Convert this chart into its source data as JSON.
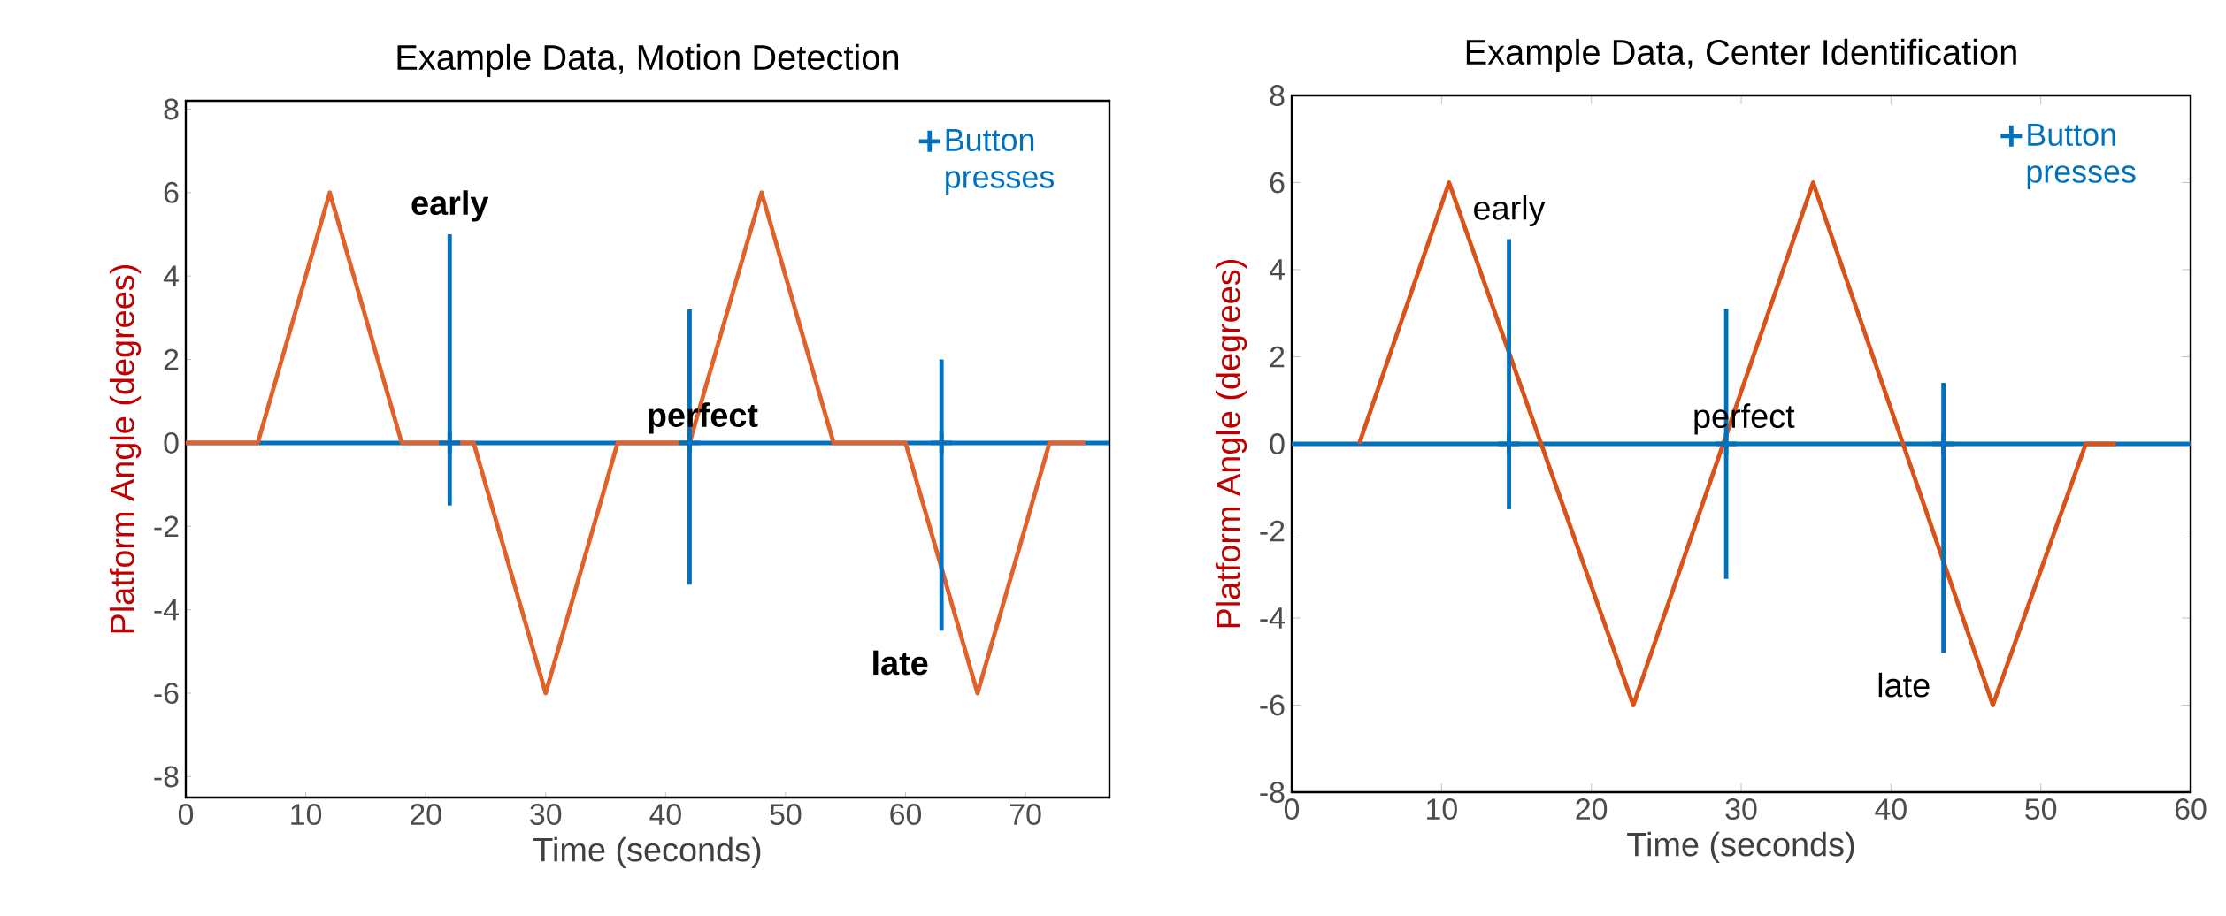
{
  "chart_data": [
    {
      "type": "line",
      "title": "Example Data, Motion Detection",
      "xlabel": "Time (seconds)",
      "ylabel": "Platform Angle (degrees)",
      "xlim": [
        0,
        77
      ],
      "ylim": [
        -8.5,
        8.2
      ],
      "xticks": [
        0,
        10,
        20,
        30,
        40,
        50,
        60,
        70
      ],
      "yticks": [
        -8,
        -6,
        -4,
        -2,
        0,
        2,
        4,
        6,
        8
      ],
      "series": [
        {
          "color": "#e0622a",
          "x": [
            0,
            6,
            12,
            18,
            24,
            30,
            36,
            42,
            48,
            54,
            60,
            66,
            72,
            75
          ],
          "values": [
            0,
            0,
            6,
            0,
            0,
            -6,
            0,
            0,
            6,
            0,
            0,
            -6,
            0,
            0
          ]
        },
        {
          "type": "scatter",
          "name": "Button presses",
          "color": "#0070c0",
          "marker": "cross",
          "x": [
            22,
            42,
            63
          ],
          "values": [
            0,
            0,
            0
          ],
          "errors": [
            [
              -1.5,
              5
            ],
            [
              -3.4,
              3.2
            ],
            [
              -4.5,
              2
            ]
          ]
        }
      ],
      "ref_lines": [
        {
          "axis": "y",
          "value": 0,
          "color": "#0070c0"
        }
      ],
      "annotations": [
        "early",
        "perfect",
        "late"
      ],
      "legend": "top right"
    },
    {
      "type": "line",
      "title": "Example Data, Center Identification",
      "xlabel": "Time (seconds)",
      "ylabel": "Platform Angle (degrees)",
      "xlim": [
        0,
        60
      ],
      "ylim": [
        -8,
        8
      ],
      "xticks": [
        0,
        10,
        20,
        30,
        40,
        50,
        60
      ],
      "yticks": [
        -8,
        -6,
        -4,
        -2,
        0,
        2,
        4,
        6,
        8
      ],
      "series": [
        {
          "color": "#d95319",
          "x": [
            4.5,
            10.5,
            22.8,
            34.8,
            46.8,
            53,
            55
          ],
          "values": [
            0,
            6,
            -6,
            6,
            -6,
            0,
            0
          ]
        },
        {
          "type": "scatter",
          "name": "Button presses",
          "color": "#0072bd",
          "marker": "cross",
          "x": [
            14.5,
            29,
            43.5
          ],
          "values": [
            0,
            0,
            0
          ],
          "errors": [
            [
              -1.5,
              4.7
            ],
            [
              -3.1,
              3.1
            ],
            [
              -4.8,
              1.4
            ]
          ]
        }
      ],
      "ref_lines": [
        {
          "axis": "y",
          "value": 0,
          "color": "#0072bd"
        }
      ],
      "annotations": [
        "early",
        "perfect",
        "late"
      ],
      "legend": "top right"
    }
  ]
}
